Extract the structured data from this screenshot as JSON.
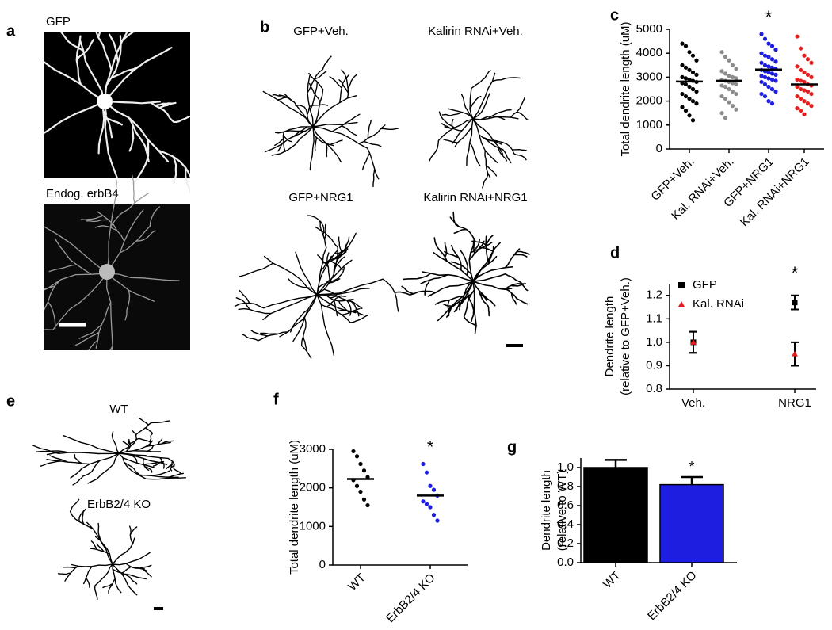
{
  "figure": {
    "a": {
      "letter": "a",
      "captions": [
        "GFP",
        "Endog. erbB4"
      ]
    },
    "b": {
      "letter": "b",
      "captions": [
        "GFP+Veh.",
        "Kalirin RNAi+Veh.",
        "GFP+NRG1",
        "Kalirin RNAi+NRG1"
      ]
    },
    "e": {
      "letter": "e",
      "captions": [
        "WT",
        "ErbB2/4 KO"
      ]
    }
  },
  "chart_data": [
    {
      "type": "strip",
      "panel": "c",
      "ylabel": [
        "Total dendrite length (uM)"
      ],
      "annotation": "*",
      "annotation_category": 2,
      "categories": [
        "GFP+Veh.",
        "Kal. RNAi+Veh.",
        "GFP+NRG1",
        "Kal. RNAi+NRG1"
      ],
      "colors": [
        "#000000",
        "#8c8c8c",
        "#1e1ee0",
        "#e41f1f"
      ],
      "points": [
        [
          4400,
          4300,
          4050,
          3900,
          3700,
          3500,
          3400,
          3300,
          3200,
          3100,
          3000,
          2950,
          2900,
          2850,
          2800,
          2750,
          2700,
          2600,
          2500,
          2400,
          2300,
          2200,
          2100,
          2000,
          1900,
          1750,
          1600,
          1400,
          1200
        ],
        [
          4050,
          3850,
          3700,
          3500,
          3350,
          3250,
          3150,
          3050,
          3000,
          2950,
          2900,
          2850,
          2800,
          2750,
          2700,
          2650,
          2600,
          2500,
          2400,
          2300,
          2200,
          2100,
          1950,
          1800,
          1650,
          1500,
          1300
        ],
        [
          4800,
          4600,
          4400,
          4300,
          4150,
          4000,
          3900,
          3850,
          3750,
          3650,
          3600,
          3500,
          3450,
          3400,
          3350,
          3300,
          3250,
          3200,
          3150,
          3100,
          3050,
          3000,
          2950,
          2900,
          2850,
          2800,
          2700,
          2600,
          2500,
          2400,
          2300,
          2200,
          2000,
          1900
        ],
        [
          4700,
          4200,
          3900,
          3750,
          3600,
          3450,
          3300,
          3200,
          3100,
          3000,
          2900,
          2850,
          2800,
          2700,
          2650,
          2600,
          2500,
          2450,
          2400,
          2300,
          2200,
          2100,
          2000,
          1900,
          1800,
          1700,
          1600,
          1450
        ]
      ],
      "means": [
        2820,
        2850,
        3320,
        2700
      ],
      "ylim": [
        0,
        5000
      ],
      "yticks": [
        0,
        1000,
        2000,
        3000,
        4000,
        5000
      ]
    },
    {
      "type": "point",
      "panel": "d",
      "ylabel": [
        "Dendrite length",
        "(relative to GFP+Veh.)"
      ],
      "annotation": "*",
      "annotation_category": 1,
      "categories": [
        "Veh.",
        "NRG1"
      ],
      "series": [
        {
          "name": "GFP",
          "color": "#000000",
          "marker": "square",
          "values": [
            1.0,
            1.17
          ],
          "errors": [
            0.045,
            0.03
          ]
        },
        {
          "name": "Kal. RNAi",
          "color": "#e41f1f",
          "marker": "triangle",
          "values": [
            1.0,
            0.95
          ],
          "errors": [
            0.045,
            0.05
          ]
        }
      ],
      "ylim": [
        0.8,
        1.25
      ],
      "yticks": [
        0.8,
        0.9,
        {
          "value": 1.0,
          "label": "1.0"
        },
        1.1,
        1.2
      ]
    },
    {
      "type": "strip",
      "panel": "f",
      "ylabel": [
        "Total dendrite length (uM)"
      ],
      "annotation": "*",
      "annotation_category": 1,
      "categories": [
        "WT",
        "ErbB2/4 KO"
      ],
      "colors": [
        "#000000",
        "#1e1ee0"
      ],
      "points": [
        [
          2950,
          2820,
          2620,
          2450,
          2280,
          2200,
          2050,
          1900,
          1700,
          1550
        ],
        [
          2620,
          2400,
          2050,
          1950,
          1800,
          1650,
          1580,
          1500,
          1300,
          1150
        ]
      ],
      "means": [
        2230,
        1800
      ],
      "ylim": [
        0,
        3000
      ],
      "yticks": [
        0,
        1000,
        2000,
        3000
      ]
    },
    {
      "type": "bar",
      "panel": "g",
      "ylabel": [
        "Dendrite length",
        "(relative to WT)"
      ],
      "annotation": "*",
      "annotation_category": 1,
      "categories": [
        "WT",
        "ErbB2/4 KO"
      ],
      "colors": [
        "#000000",
        "#1e1ee0"
      ],
      "values": [
        1.0,
        0.82
      ],
      "errors": [
        0.08,
        0.08
      ],
      "ylim": [
        0,
        1.1
      ],
      "yticks": [
        {
          "value": 0,
          "label": "0.0"
        },
        0.2,
        0.4,
        0.6,
        0.8,
        {
          "value": 1.0,
          "label": "1.0"
        }
      ]
    }
  ]
}
